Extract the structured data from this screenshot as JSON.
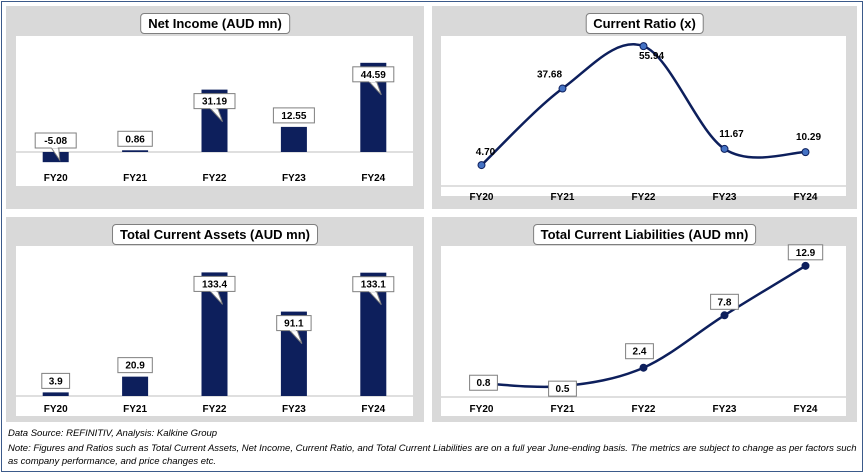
{
  "chart_data": [
    {
      "type": "bar",
      "title": "Net Income (AUD mn)",
      "categories": [
        "FY20",
        "FY21",
        "FY22",
        "FY23",
        "FY24"
      ],
      "values": [
        -5.08,
        0.86,
        31.19,
        12.55,
        44.59
      ],
      "labels": [
        "-5.08",
        "0.86",
        "31.19",
        "12.55",
        "44.59"
      ],
      "ylim": [
        -6,
        52
      ],
      "grid": false,
      "color": "#0d1f5c"
    },
    {
      "type": "line",
      "smooth": true,
      "title": "Current Ratio (x)",
      "categories": [
        "FY20",
        "FY21",
        "FY22",
        "FY23",
        "FY24"
      ],
      "values": [
        4.7,
        37.68,
        55.94,
        11.67,
        10.29
      ],
      "labels": [
        "4.70",
        "37.68",
        "55.94",
        "11.67",
        "10.29"
      ],
      "ylim": [
        0,
        56
      ],
      "grid": false,
      "color": "#0d1f5c",
      "marker_color": "#4472c4"
    },
    {
      "type": "bar",
      "title": "Total Current Assets (AUD mn)",
      "categories": [
        "FY20",
        "FY21",
        "FY22",
        "FY23",
        "FY24"
      ],
      "values": [
        3.9,
        20.9,
        133.4,
        91.1,
        133.1
      ],
      "labels": [
        "3.9",
        "20.9",
        "133.4",
        "91.1",
        "133.1"
      ],
      "ylim": [
        0,
        136
      ],
      "grid": false,
      "color": "#0d1f5c"
    },
    {
      "type": "line",
      "smooth": true,
      "title": "Total Current Liabilities (AUD mn)",
      "categories": [
        "FY20",
        "FY21",
        "FY22",
        "FY23",
        "FY24"
      ],
      "values": [
        0.8,
        0.5,
        2.4,
        7.8,
        12.9
      ],
      "labels": [
        "0.8",
        "0.5",
        "2.4",
        "7.8",
        "12.9"
      ],
      "ylim": [
        0,
        13.5
      ],
      "grid": false,
      "color": "#0d1f5c",
      "marker_color": "#0d1f5c"
    }
  ],
  "footer": {
    "source": "Data Source: REFINITIV, Analysis: Kalkine Group",
    "note": "Note: Figures and Ratios such as Total Current Assets, Net Income, Current Ratio, and Total Current Liabilities are on a full year June-ending basis. The metrics are subject to change as per factors such as company performance, and price changes etc."
  }
}
